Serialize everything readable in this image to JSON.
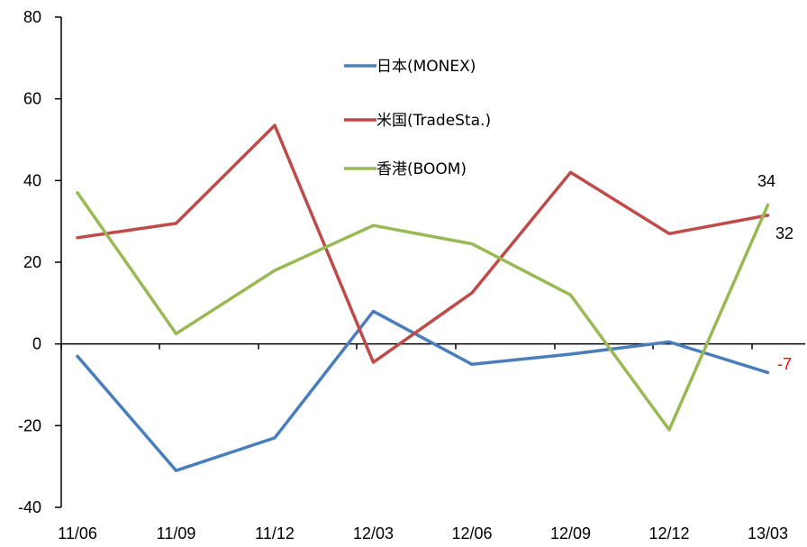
{
  "chart_data": {
    "type": "line",
    "title": "",
    "xlabel": "",
    "ylabel": "",
    "categories": [
      "11/06",
      "11/09",
      "11/12",
      "12/03",
      "12/06",
      "12/09",
      "12/12",
      "13/03"
    ],
    "ylim": [
      -40,
      80
    ],
    "yticks": [
      "80",
      "60",
      "40",
      "20",
      "0",
      "-20",
      "-40"
    ],
    "ytick_values": [
      80,
      60,
      40,
      20,
      0,
      -20,
      -40
    ],
    "legend_position": "upper-center inside plot",
    "grid": false,
    "series": [
      {
        "name": "日本(MONEX)",
        "color": "#4a7ebb",
        "values": [
          -3,
          -31,
          -23,
          8,
          -5,
          -2.5,
          0.5,
          -7
        ]
      },
      {
        "name": "米国(TradeSta.)",
        "color": "#be4b48",
        "values": [
          26,
          29.5,
          53.5,
          -4.5,
          12.5,
          42,
          27,
          31.5
        ]
      },
      {
        "name": "香港(BOOM)",
        "color": "#98b954",
        "values": [
          37,
          2.5,
          18,
          29,
          24.5,
          12,
          -21,
          34
        ]
      }
    ],
    "annotations": [
      {
        "text": "34",
        "color": "#000000"
      },
      {
        "text": "32",
        "color": "#000000"
      },
      {
        "text": "-7",
        "color": "#ff0000"
      }
    ]
  }
}
